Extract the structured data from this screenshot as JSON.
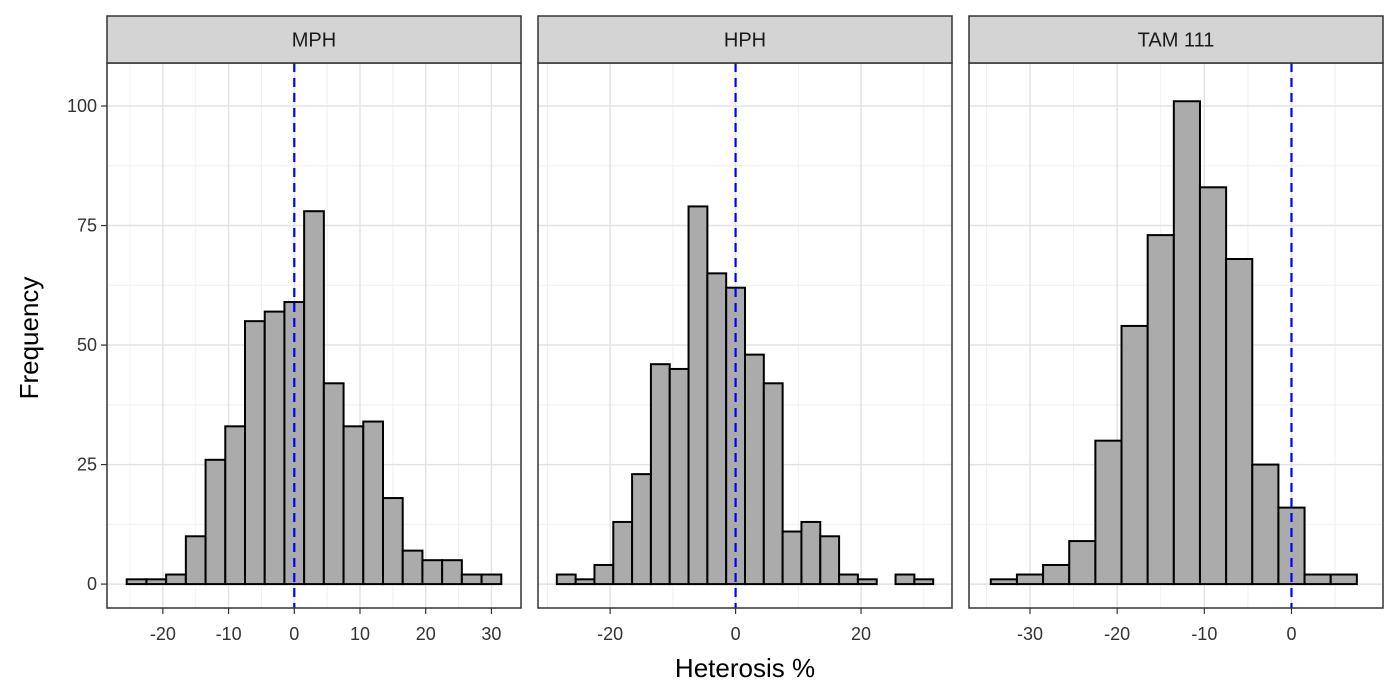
{
  "chart_data": {
    "type": "bar",
    "xlabel": "Heterosis %",
    "ylabel": "Frequency",
    "ylim": [
      -5,
      109
    ],
    "yticks": [
      0,
      25,
      50,
      75,
      100
    ],
    "grid": true,
    "colors": {
      "bar_fill": "#ababab",
      "bar_stroke": "#000000",
      "ref_line": "#0000ff",
      "grid_major": "#e3e3e3",
      "grid_minor": "#f0f0f0",
      "strip_fill": "#d4d4d4"
    },
    "panels": [
      {
        "name": "MPH",
        "xlim": [
          -28.5,
          34.5
        ],
        "xticks": [
          -20,
          -10,
          0,
          10,
          20,
          30
        ],
        "bin_width": 3,
        "bins_start": -25.5,
        "values": [
          1,
          1,
          2,
          10,
          26,
          33,
          55,
          57,
          59,
          78,
          42,
          33,
          34,
          18,
          7,
          5,
          5,
          2,
          2
        ],
        "ref_line_x": 0
      },
      {
        "name": "HPH",
        "xlim": [
          -31.5,
          34.5
        ],
        "xticks": [
          -20,
          0,
          20
        ],
        "bin_width": 3,
        "bins_start": -28.5,
        "values": [
          2,
          1,
          4,
          13,
          23,
          46,
          45,
          79,
          65,
          62,
          48,
          42,
          11,
          13,
          10,
          2,
          1,
          0,
          2,
          1
        ],
        "ref_line_x": 0
      },
      {
        "name": "TAM 111",
        "xlim": [
          -37,
          10.5
        ],
        "xticks": [
          -30,
          -20,
          -10,
          0
        ],
        "bin_width": 3,
        "bins_start": -34.5,
        "values": [
          1,
          2,
          4,
          9,
          30,
          54,
          73,
          101,
          83,
          68,
          25,
          16,
          2,
          2
        ],
        "ref_line_x": 0
      }
    ]
  }
}
